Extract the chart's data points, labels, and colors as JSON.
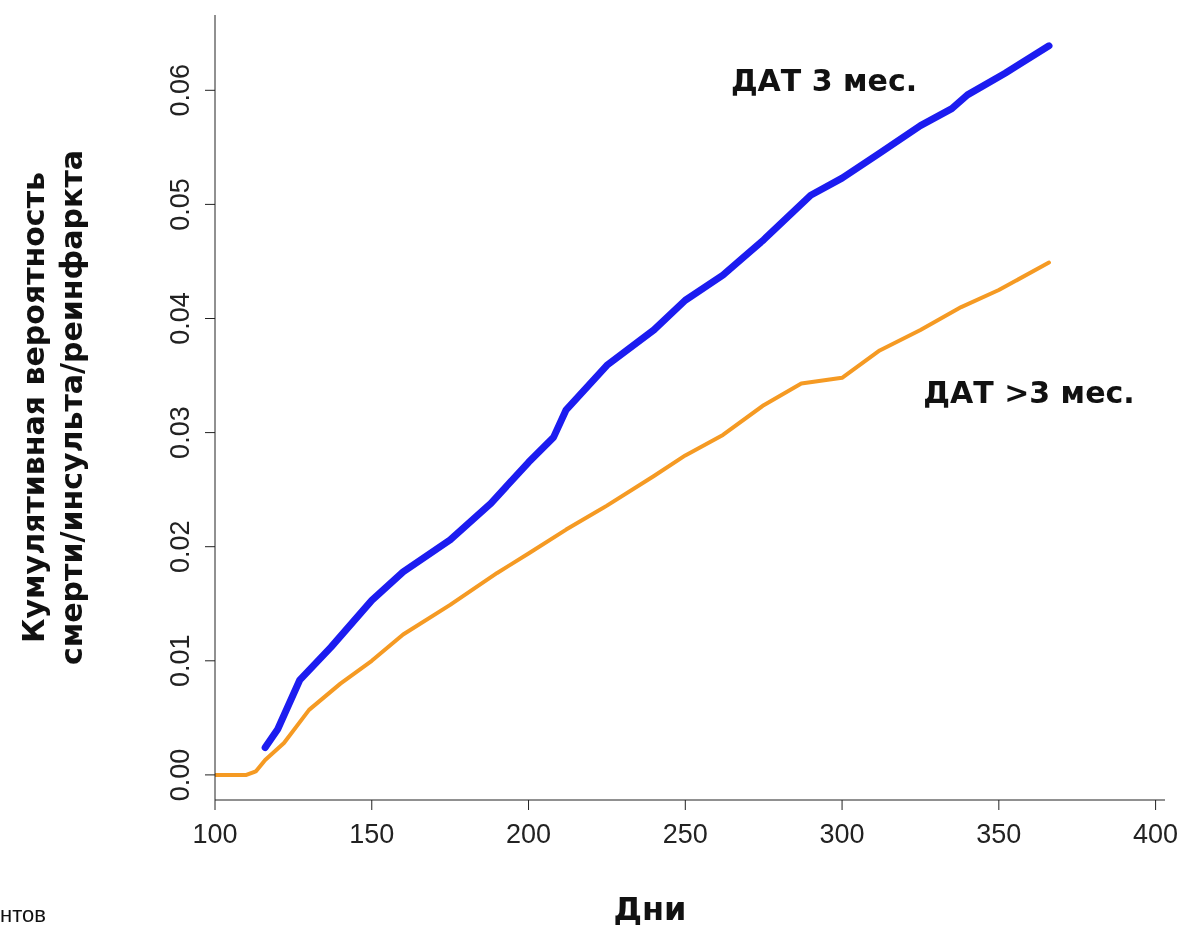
{
  "chart_data": {
    "type": "line",
    "ylabel": "Кумулятивная вероятность\nсмерти/инсульта/реинфаркта",
    "xlabel": "Дни",
    "xlim": [
      100,
      403
    ],
    "xticks": [
      100,
      150,
      200,
      250,
      300,
      350,
      400
    ],
    "ylim": [
      -0.0022,
      0.0666
    ],
    "yticks": [
      {
        "value": 0,
        "label": "0.00"
      },
      {
        "value": 0.01,
        "label": "0.01"
      },
      {
        "value": 0.02,
        "label": "0.02"
      },
      {
        "value": 0.03,
        "label": "0.03"
      },
      {
        "value": 0.04,
        "label": "0.04"
      },
      {
        "value": 0.05,
        "label": "0.05"
      },
      {
        "value": 0.06,
        "label": "0.06"
      }
    ],
    "marker": "none",
    "annotations": [
      "нтов"
    ],
    "series": [
      {
        "name": "ДАТ 3 мес.",
        "color": "#1c1cf0",
        "x": [
          116,
          120,
          127,
          137,
          150,
          160,
          175,
          188,
          200,
          208,
          212,
          225,
          240,
          250,
          262,
          275,
          290,
          300,
          312,
          325,
          335,
          340,
          352,
          366
        ],
        "values": [
          0.0024,
          0.004,
          0.0083,
          0.0112,
          0.0153,
          0.0178,
          0.0206,
          0.0238,
          0.0274,
          0.0296,
          0.032,
          0.0359,
          0.039,
          0.0416,
          0.0438,
          0.0469,
          0.0508,
          0.0523,
          0.0545,
          0.0569,
          0.0584,
          0.0596,
          0.0615,
          0.0639
        ]
      },
      {
        "name": "ДАТ >3 мес.",
        "color": "#f59a23",
        "x": [
          100,
          110,
          113,
          116,
          122,
          130,
          140,
          150,
          160,
          175,
          190,
          200,
          212,
          225,
          240,
          250,
          262,
          275,
          287,
          300,
          312,
          325,
          338,
          350,
          366
        ],
        "values": [
          0,
          0,
          0.0003,
          0.0013,
          0.0028,
          0.0057,
          0.008,
          0.01,
          0.0123,
          0.0149,
          0.0177,
          0.0194,
          0.0215,
          0.0236,
          0.0262,
          0.028,
          0.0298,
          0.0324,
          0.0343,
          0.0348,
          0.0372,
          0.039,
          0.041,
          0.0425,
          0.0449
        ]
      }
    ]
  }
}
